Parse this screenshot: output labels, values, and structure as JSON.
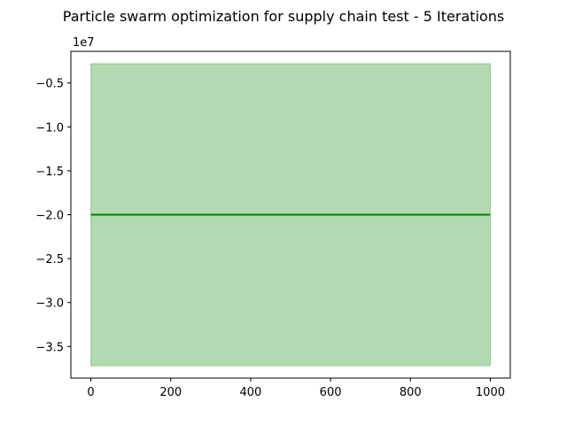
{
  "chart_data": {
    "type": "line",
    "title": "Particle swarm optimization for supply chain test - 5 Iterations",
    "xlabel": "",
    "ylabel": "",
    "offset_text": "1e7",
    "y_scale_factor": 10000000,
    "xlim": [
      -50,
      1050
    ],
    "ylim": [
      -38600000,
      -1400000
    ],
    "x_ticks": [
      0,
      200,
      400,
      600,
      800,
      1000
    ],
    "x_tick_labels": [
      "0",
      "200",
      "400",
      "600",
      "800",
      "1000"
    ],
    "y_ticks": [
      -5000000,
      -10000000,
      -15000000,
      -20000000,
      -25000000,
      -30000000,
      -35000000
    ],
    "y_tick_labels": [
      "−0.5",
      "−1.0",
      "−1.5",
      "−2.0",
      "−2.5",
      "−3.0",
      "−3.5"
    ],
    "grid": false,
    "legend": "none",
    "series": [
      {
        "color": "#008000",
        "x": [
          0,
          1000
        ],
        "y": [
          -20000000,
          -20000000
        ]
      }
    ],
    "band": {
      "color": "#008000",
      "opacity": 0.3,
      "x": [
        0,
        1000
      ],
      "upper": [
        -2800000,
        -2800000
      ],
      "lower": [
        -37200000,
        -37200000
      ]
    }
  }
}
